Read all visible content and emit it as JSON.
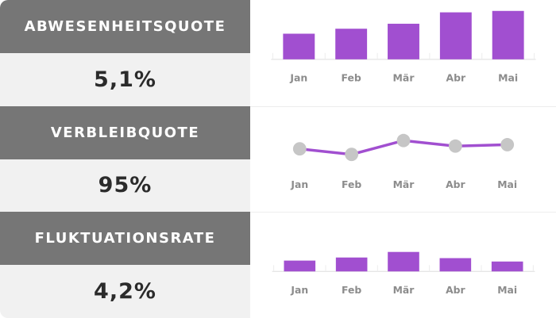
{
  "colors": {
    "accent_purple": "#a14fd0",
    "marker_gray": "#c6c6c6",
    "header_bg": "#767676",
    "header_text": "#ffffff",
    "value_bg": "#f1f1f1",
    "value_text": "#2b2b2b",
    "label_gray": "#8c8c8c",
    "axis_gray": "#dddddd"
  },
  "rows": [
    {
      "title": "ABWESENHEITSQUOTE",
      "value": "5,1%"
    },
    {
      "title": "VERBLEIBQUOTE",
      "value": "95%"
    },
    {
      "title": "FLUKTUATIONSRATE",
      "value": "4,2%"
    }
  ],
  "chart_data": [
    {
      "type": "bar",
      "categories": [
        "Jan",
        "Feb",
        "Mär",
        "Abr",
        "Mai"
      ],
      "values": [
        3.6,
        4.3,
        5.0,
        6.6,
        6.8
      ],
      "ylim": [
        0,
        7
      ],
      "legend": "none",
      "grid": false
    },
    {
      "type": "line",
      "categories": [
        "Jan",
        "Feb",
        "Mär",
        "Abr",
        "Mai"
      ],
      "values": [
        94,
        92,
        97,
        95,
        95.5
      ],
      "ylim": [
        85,
        102
      ],
      "legend": "none",
      "grid": false
    },
    {
      "type": "bar",
      "categories": [
        "Jan",
        "Feb",
        "Mär",
        "Abr",
        "Mai"
      ],
      "values": [
        3.5,
        4.5,
        6.3,
        4.3,
        3.2
      ],
      "ylim": [
        0,
        16
      ],
      "legend": "none",
      "grid": false
    }
  ]
}
